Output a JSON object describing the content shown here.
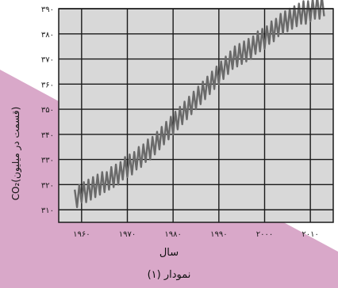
{
  "colors": {
    "page_background": "#ffffff",
    "pink_overlay": "#d9a8c9",
    "plot_background": "#d8d8d8",
    "grid": "#1a1a1a",
    "series": "#6a6a6a"
  },
  "chart_data": {
    "type": "line",
    "title": "نمودار (۱)",
    "xlabel": "سال",
    "ylabel": "CO₂(قسمت در میلیون)",
    "xlim": [
      1955,
      2015
    ],
    "ylim": [
      305,
      390
    ],
    "grid": true,
    "legend": "none",
    "x_ticks": [
      {
        "value": 1960,
        "label": "۱۹۶۰"
      },
      {
        "value": 1970,
        "label": "۱۹۷۰"
      },
      {
        "value": 1980,
        "label": "۱۹۸۰"
      },
      {
        "value": 1990,
        "label": "۱۹۹۰"
      },
      {
        "value": 2000,
        "label": "۲۰۰۰"
      },
      {
        "value": 2010,
        "label": "۲۰۱۰"
      }
    ],
    "y_ticks": [
      {
        "value": 310,
        "label": "۳۱۰"
      },
      {
        "value": 320,
        "label": "۳۲۰"
      },
      {
        "value": 330,
        "label": "۳۳۰"
      },
      {
        "value": 340,
        "label": "۳۴۰"
      },
      {
        "value": 350,
        "label": "۳۵۰"
      },
      {
        "value": 360,
        "label": "۳۶۰"
      },
      {
        "value": 370,
        "label": "۳۷۰"
      },
      {
        "value": 380,
        "label": "۳۸۰"
      },
      {
        "value": 390,
        "label": "۳۹۰"
      }
    ],
    "series": [
      {
        "x": [
          1958.5,
          1959.0,
          1959.5,
          1960.0,
          1960.5,
          1961.0,
          1961.5,
          1962.0,
          1962.5,
          1963.0,
          1963.5,
          1964.0,
          1964.5,
          1965.0,
          1965.5,
          1966.0,
          1966.5,
          1967.0,
          1967.5,
          1968.0,
          1968.5,
          1969.0,
          1969.5,
          1970.0,
          1970.5,
          1971.0,
          1971.5,
          1972.0,
          1972.5,
          1973.0,
          1973.5,
          1974.0,
          1974.5,
          1975.0,
          1975.5,
          1976.0,
          1976.5,
          1977.0,
          1977.5,
          1978.0,
          1978.5,
          1979.0,
          1979.5,
          1980.0,
          1980.5,
          1981.0,
          1981.5,
          1982.0,
          1982.5,
          1983.0,
          1983.5,
          1984.0,
          1984.5,
          1985.0,
          1985.5,
          1986.0,
          1986.5,
          1987.0,
          1987.5,
          1988.0,
          1988.5,
          1989.0,
          1989.5,
          1990.0,
          1990.5,
          1991.0,
          1991.5,
          1992.0,
          1992.5,
          1993.0,
          1993.5,
          1994.0,
          1994.5,
          1995.0,
          1995.5,
          1996.0,
          1996.5,
          1997.0,
          1997.5,
          1998.0,
          1998.5,
          1999.0,
          1999.5,
          2000.0,
          2000.5,
          2001.0,
          2001.5,
          2002.0,
          2002.5,
          2003.0,
          2003.5,
          2004.0,
          2004.5,
          2005.0,
          2005.5,
          2006.0,
          2006.5,
          2007.0,
          2007.5,
          2008.0,
          2008.5,
          2009.0,
          2009.5,
          2010.0,
          2010.5,
          2011.0,
          2011.5,
          2012.0,
          2012.5,
          2013.0
        ],
        "values": [
          318,
          311,
          320,
          313,
          321,
          313,
          322,
          314,
          323,
          315,
          324,
          316,
          325,
          317,
          325,
          318,
          327,
          319,
          328,
          320,
          329,
          322,
          331,
          323,
          332,
          324,
          333,
          326,
          335,
          327,
          336,
          329,
          338,
          330,
          339,
          332,
          341,
          334,
          343,
          336,
          345,
          338,
          347,
          340,
          349,
          342,
          351,
          344,
          353,
          346,
          355,
          348,
          357,
          350,
          359,
          352,
          361,
          354,
          363,
          356,
          365,
          358,
          367,
          360,
          369,
          362,
          371,
          364,
          373,
          366,
          375,
          367,
          376,
          368,
          377,
          369,
          378,
          370,
          379,
          372,
          381,
          373,
          382,
          374,
          383,
          376,
          385,
          377,
          386,
          379,
          388,
          380,
          389,
          381,
          390,
          382,
          391,
          383,
          392,
          384,
          393,
          384,
          393,
          385,
          394,
          386,
          395,
          386,
          395,
          387
        ]
      }
    ]
  }
}
